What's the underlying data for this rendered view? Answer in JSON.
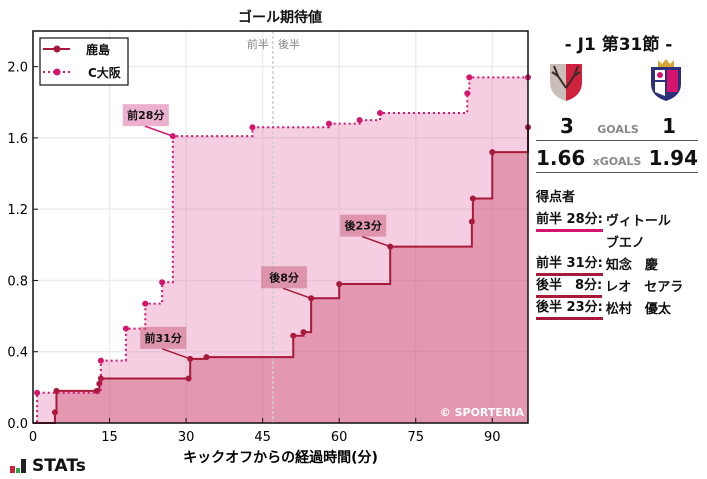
{
  "chart_data": {
    "type": "line",
    "subtype": "step-area",
    "title": "ゴール期待値",
    "xlabel": "キックオフからの経過時間(分)",
    "ylabel": "",
    "xlim": [
      0,
      97
    ],
    "ylim": [
      0,
      2.2
    ],
    "xticks": [
      0,
      15,
      30,
      45,
      60,
      75,
      90
    ],
    "yticks": [
      0.0,
      0.4,
      0.8,
      1.2,
      1.6,
      2.0
    ],
    "grid": true,
    "legend_position": "upper left",
    "half_markers": {
      "first": "前半",
      "second": "後半",
      "x": 47
    },
    "watermark": "© SPORTERIA",
    "series": [
      {
        "name": "鹿島",
        "style": "solid",
        "color": "#a8193a",
        "x": [
          0,
          4,
          4.3,
          4.6,
          12.5,
          13,
          13.3,
          30.5,
          30.8,
          34,
          51,
          53,
          54.5,
          60,
          70,
          86,
          86.2,
          90,
          97
        ],
        "y": [
          0,
          0,
          0.06,
          0.18,
          0.18,
          0.22,
          0.25,
          0.25,
          0.36,
          0.37,
          0.49,
          0.51,
          0.7,
          0.78,
          0.99,
          1.13,
          1.26,
          1.52,
          1.66
        ]
      },
      {
        "name": "C大阪",
        "style": "dotted",
        "color": "#d4146e",
        "x": [
          0,
          0.8,
          13.3,
          18.2,
          22,
          25.3,
          27.4,
          43,
          58,
          64,
          68,
          85.1,
          85.5,
          97
        ],
        "y": [
          0,
          0.17,
          0.35,
          0.53,
          0.67,
          0.79,
          1.61,
          1.66,
          1.68,
          1.7,
          1.74,
          1.85,
          1.94,
          1.94
        ]
      }
    ],
    "annotations": [
      {
        "label": "前28分",
        "team": "C大阪",
        "x": 27.4,
        "y": 1.61
      },
      {
        "label": "前31分",
        "team": "鹿島",
        "x": 30.8,
        "y": 0.36
      },
      {
        "label": "後8分",
        "team": "鹿島",
        "x": 54.5,
        "y": 0.7
      },
      {
        "label": "後23分",
        "team": "鹿島",
        "x": 70,
        "y": 0.99
      }
    ]
  },
  "side": {
    "round": "-  J1 第31節  -",
    "home_logo": "kashima-antlers-crest",
    "away_logo": "cerezo-osaka-crest",
    "goals_label": "GOALS",
    "xgoals_label": "xGOALS",
    "home_goals": "3",
    "away_goals": "1",
    "home_xg": "1.66",
    "away_xg": "1.94",
    "scorers_title": "得点者",
    "scorers": [
      {
        "time": "前半 28分",
        "name": "ヴィトール\nブエノ",
        "color": "#d4146e"
      },
      {
        "time": "前半 31分",
        "name": "知念　慶",
        "color": "#a8193a"
      },
      {
        "time": "後半　8分",
        "name": "レオ　セアラ",
        "color": "#a8193a"
      },
      {
        "time": "後半 23分",
        "name": "松村　優太",
        "color": "#a8193a"
      }
    ]
  },
  "brand": "STATs"
}
